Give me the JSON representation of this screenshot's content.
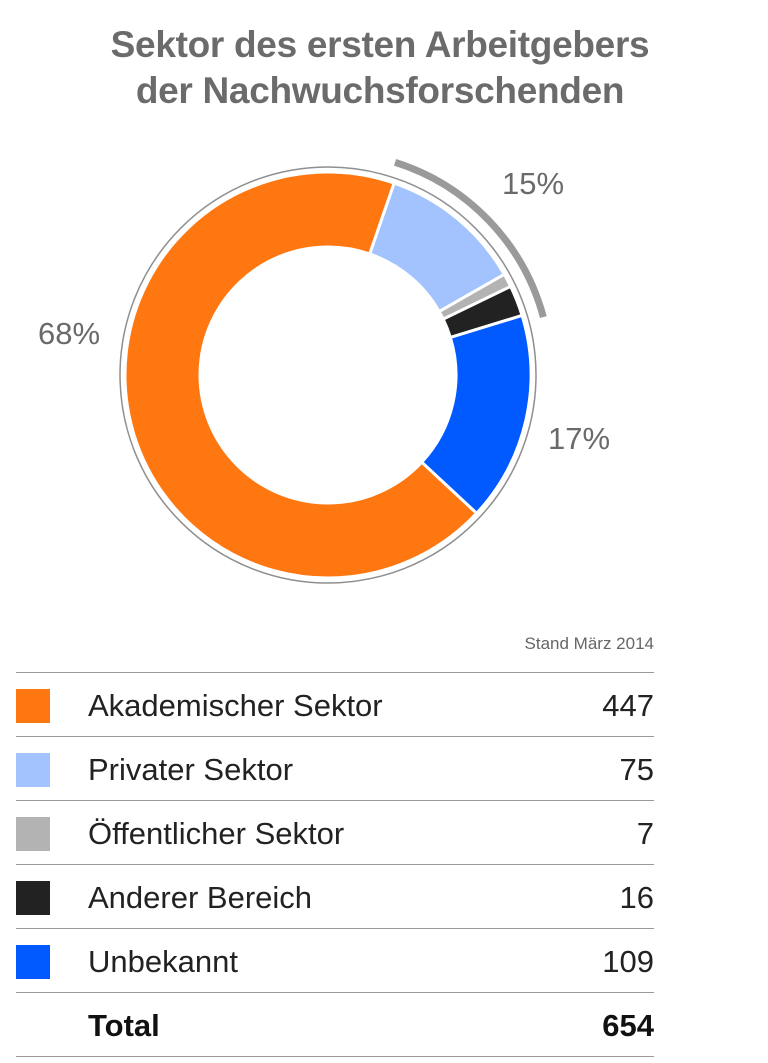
{
  "title_lines": [
    "Sektor des ersten Arbeitgebers",
    "der Nachwuchsforschenden"
  ],
  "stand": "Stand März 2014",
  "chart_data": {
    "type": "pie",
    "title": "Sektor des ersten Arbeitgebers der Nachwuchsforschenden",
    "slices": [
      {
        "label": "Akademischer Sektor",
        "value": 447,
        "color": "#ff7711"
      },
      {
        "label": "Privater Sektor",
        "value": 75,
        "color": "#a3c3ff"
      },
      {
        "label": "Öffentlicher Sektor",
        "value": 7,
        "color": "#b3b3b3"
      },
      {
        "label": "Anderer Bereich",
        "value": 16,
        "color": "#222222"
      },
      {
        "label": "Unbekannt",
        "value": 109,
        "color": "#005aff"
      }
    ],
    "total": 654,
    "percent_labels": {
      "academic": "68%",
      "bracket": "15%",
      "unknown": "17%"
    }
  },
  "legend": {
    "rows": [
      {
        "label": "Akademischer Sektor",
        "value": "447",
        "color": "#ff7711"
      },
      {
        "label": "Privater Sektor",
        "value": "75",
        "color": "#a3c3ff"
      },
      {
        "label": "Öffentlicher Sektor",
        "value": "7",
        "color": "#b3b3b3"
      },
      {
        "label": "Anderer Bereich",
        "value": "16",
        "color": "#222222"
      },
      {
        "label": "Unbekannt",
        "value": "109",
        "color": "#005aff"
      }
    ],
    "total_label": "Total",
    "total_value": "654"
  }
}
